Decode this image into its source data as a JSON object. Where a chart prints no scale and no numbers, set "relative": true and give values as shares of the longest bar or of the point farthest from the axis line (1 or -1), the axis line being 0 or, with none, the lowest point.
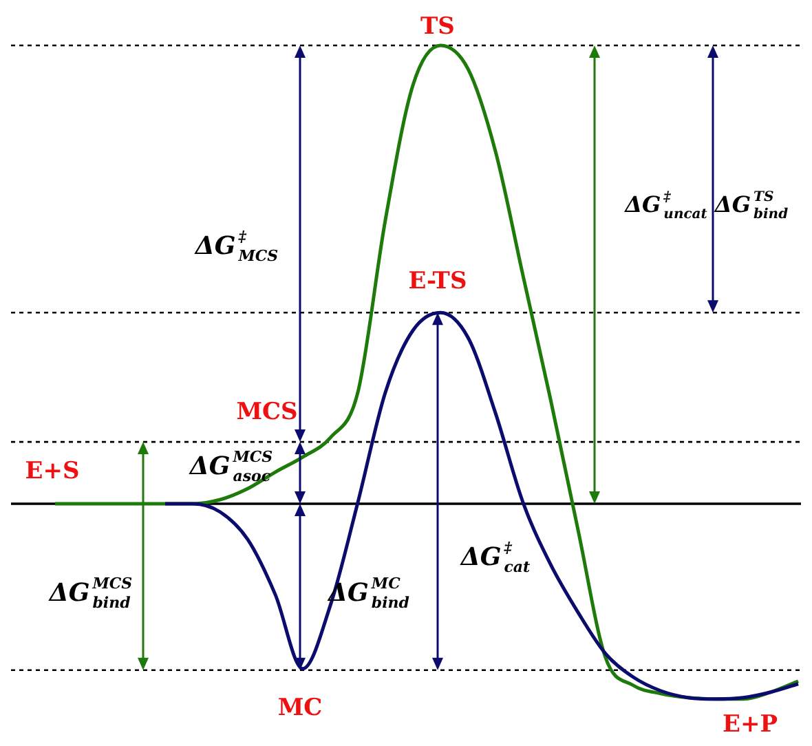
{
  "chart_data": {
    "type": "line",
    "relative": true,
    "tick_labels": false,
    "categories": [
      null,
      null,
      null,
      null,
      null,
      null,
      null,
      null,
      null,
      null,
      null,
      null,
      null,
      null,
      null,
      null,
      null,
      null,
      null,
      null,
      null,
      null,
      null,
      null,
      null,
      null,
      null,
      null
    ],
    "series": [
      {
        "color": "#1e7a0a",
        "values": [
          0,
          0,
          0,
          0,
          0,
          0,
          0.009,
          0.033,
          0.069,
          0.102,
          0.144,
          0.243,
          0.619,
          0.913,
          1,
          0.949,
          0.769,
          0.498,
          0.228,
          -0.057,
          -0.336,
          -0.396,
          -0.414,
          -0.423,
          -0.426,
          -0.426,
          -0.411,
          -0.387
        ]
      },
      {
        "color": "#0c0c6e",
        "values": [
          null,
          null,
          null,
          null,
          0,
          0,
          -0.018,
          -0.078,
          -0.198,
          -0.36,
          -0.222,
          0.003,
          0.243,
          0.378,
          0.417,
          0.363,
          0.198,
          0.003,
          -0.132,
          -0.237,
          -0.327,
          -0.378,
          -0.408,
          -0.423,
          -0.426,
          -0.423,
          -0.411,
          -0.393
        ]
      }
    ],
    "ref_lines": [
      {
        "axis": "y",
        "value": 1,
        "line_style": "dotted",
        "color": "#000000"
      },
      {
        "axis": "y",
        "value": 0.417,
        "line_style": "dotted",
        "color": "#000000"
      },
      {
        "axis": "y",
        "value": 0.135,
        "line_style": "dotted",
        "color": "#000000"
      },
      {
        "axis": "y",
        "value": 0,
        "line_style": "solid",
        "color": "#000000"
      },
      {
        "axis": "y",
        "value": -0.363,
        "line_style": "dotted",
        "color": "#000000"
      }
    ],
    "annotations": [
      "TS",
      "E-TS",
      "MCS",
      "E+S",
      "MC",
      "E+P",
      "ΔG$^{‡}$$_{MCS}$",
      "ΔG$^{MCS}$$_{asoc}$",
      "ΔG$^{MC}$$_{bind}$",
      "ΔG$^{MCS}$$_{bind}$",
      "ΔG$^{‡}$$_{cat}$",
      "ΔG$^{‡}$$_{uncat}$",
      "ΔG$^{TS}$$_{bind}$"
    ]
  }
}
